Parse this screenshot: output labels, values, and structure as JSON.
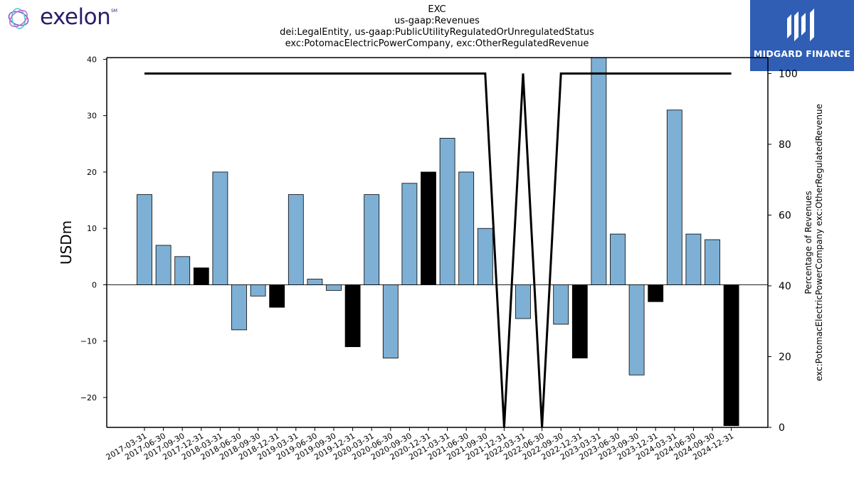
{
  "header": {
    "title_lines": [
      "EXC",
      "us-gaap:Revenues",
      "dei:LegalEntity, us-gaap:PublicUtilityRegulatedOrUnregulatedStatus",
      "exc:PotomacElectricPowerCompany, exc:OtherRegulatedRevenue"
    ]
  },
  "logos": {
    "left_wordmark": "exelon",
    "left_mark": "SM",
    "right_brand": "MIDGARD FINANCE",
    "right_bg": "#2f5eb4"
  },
  "chart_data": {
    "type": "bar",
    "categories": [
      "2017-03-31",
      "2017-06-30",
      "2017-09-30",
      "2017-12-31",
      "2018-03-31",
      "2018-06-30",
      "2018-09-30",
      "2018-12-31",
      "2019-03-31",
      "2019-06-30",
      "2019-09-30",
      "2019-12-31",
      "2020-03-31",
      "2020-06-30",
      "2020-09-30",
      "2020-12-31",
      "2021-03-31",
      "2021-06-30",
      "2021-09-30",
      "2021-12-31",
      "2022-03-31",
      "2022-06-30",
      "2022-09-30",
      "2022-12-31",
      "2023-03-31",
      "2023-06-30",
      "2023-09-30",
      "2023-12-31",
      "2024-03-31",
      "2024-06-30",
      "2024-09-30",
      "2024-12-31"
    ],
    "series": [
      {
        "values": [
          16,
          7,
          5,
          3,
          20,
          -8,
          -2,
          -4,
          16,
          1,
          -1,
          -11,
          16,
          -13,
          18,
          20,
          26,
          20,
          10,
          0,
          -6,
          0,
          -7,
          -13,
          41,
          9,
          -16,
          -3,
          31,
          9,
          8,
          -25
        ],
        "highlight": [
          false,
          false,
          false,
          true,
          false,
          false,
          false,
          true,
          false,
          false,
          false,
          true,
          false,
          false,
          false,
          true,
          false,
          false,
          false,
          true,
          false,
          false,
          false,
          true,
          false,
          false,
          false,
          true,
          false,
          false,
          false,
          true
        ],
        "axis": "left"
      },
      {
        "type": "line",
        "values": [
          100,
          100,
          100,
          100,
          100,
          100,
          100,
          100,
          100,
          100,
          100,
          100,
          100,
          100,
          100,
          100,
          100,
          100,
          100,
          0,
          100,
          0,
          100,
          100,
          100,
          100,
          100,
          100,
          100,
          100,
          100,
          100
        ],
        "axis": "right"
      }
    ],
    "ylabel": "USDm",
    "y2label_lines": [
      "Percentage of Revenues",
      "exc:PotomacElectricPowerCompany exc:OtherRegulatedRevenue"
    ],
    "ylim": [
      -25.3,
      40.3
    ],
    "y2lim": [
      0,
      104.5
    ],
    "yticks": [
      -20,
      -10,
      0,
      10,
      20,
      30,
      40
    ],
    "y2ticks": [
      0,
      20,
      40,
      60,
      80,
      100
    ],
    "colors": {
      "bar": "#7eb0d5",
      "bar_highlight": "#000000",
      "line": "#000000"
    },
    "grid": false
  }
}
